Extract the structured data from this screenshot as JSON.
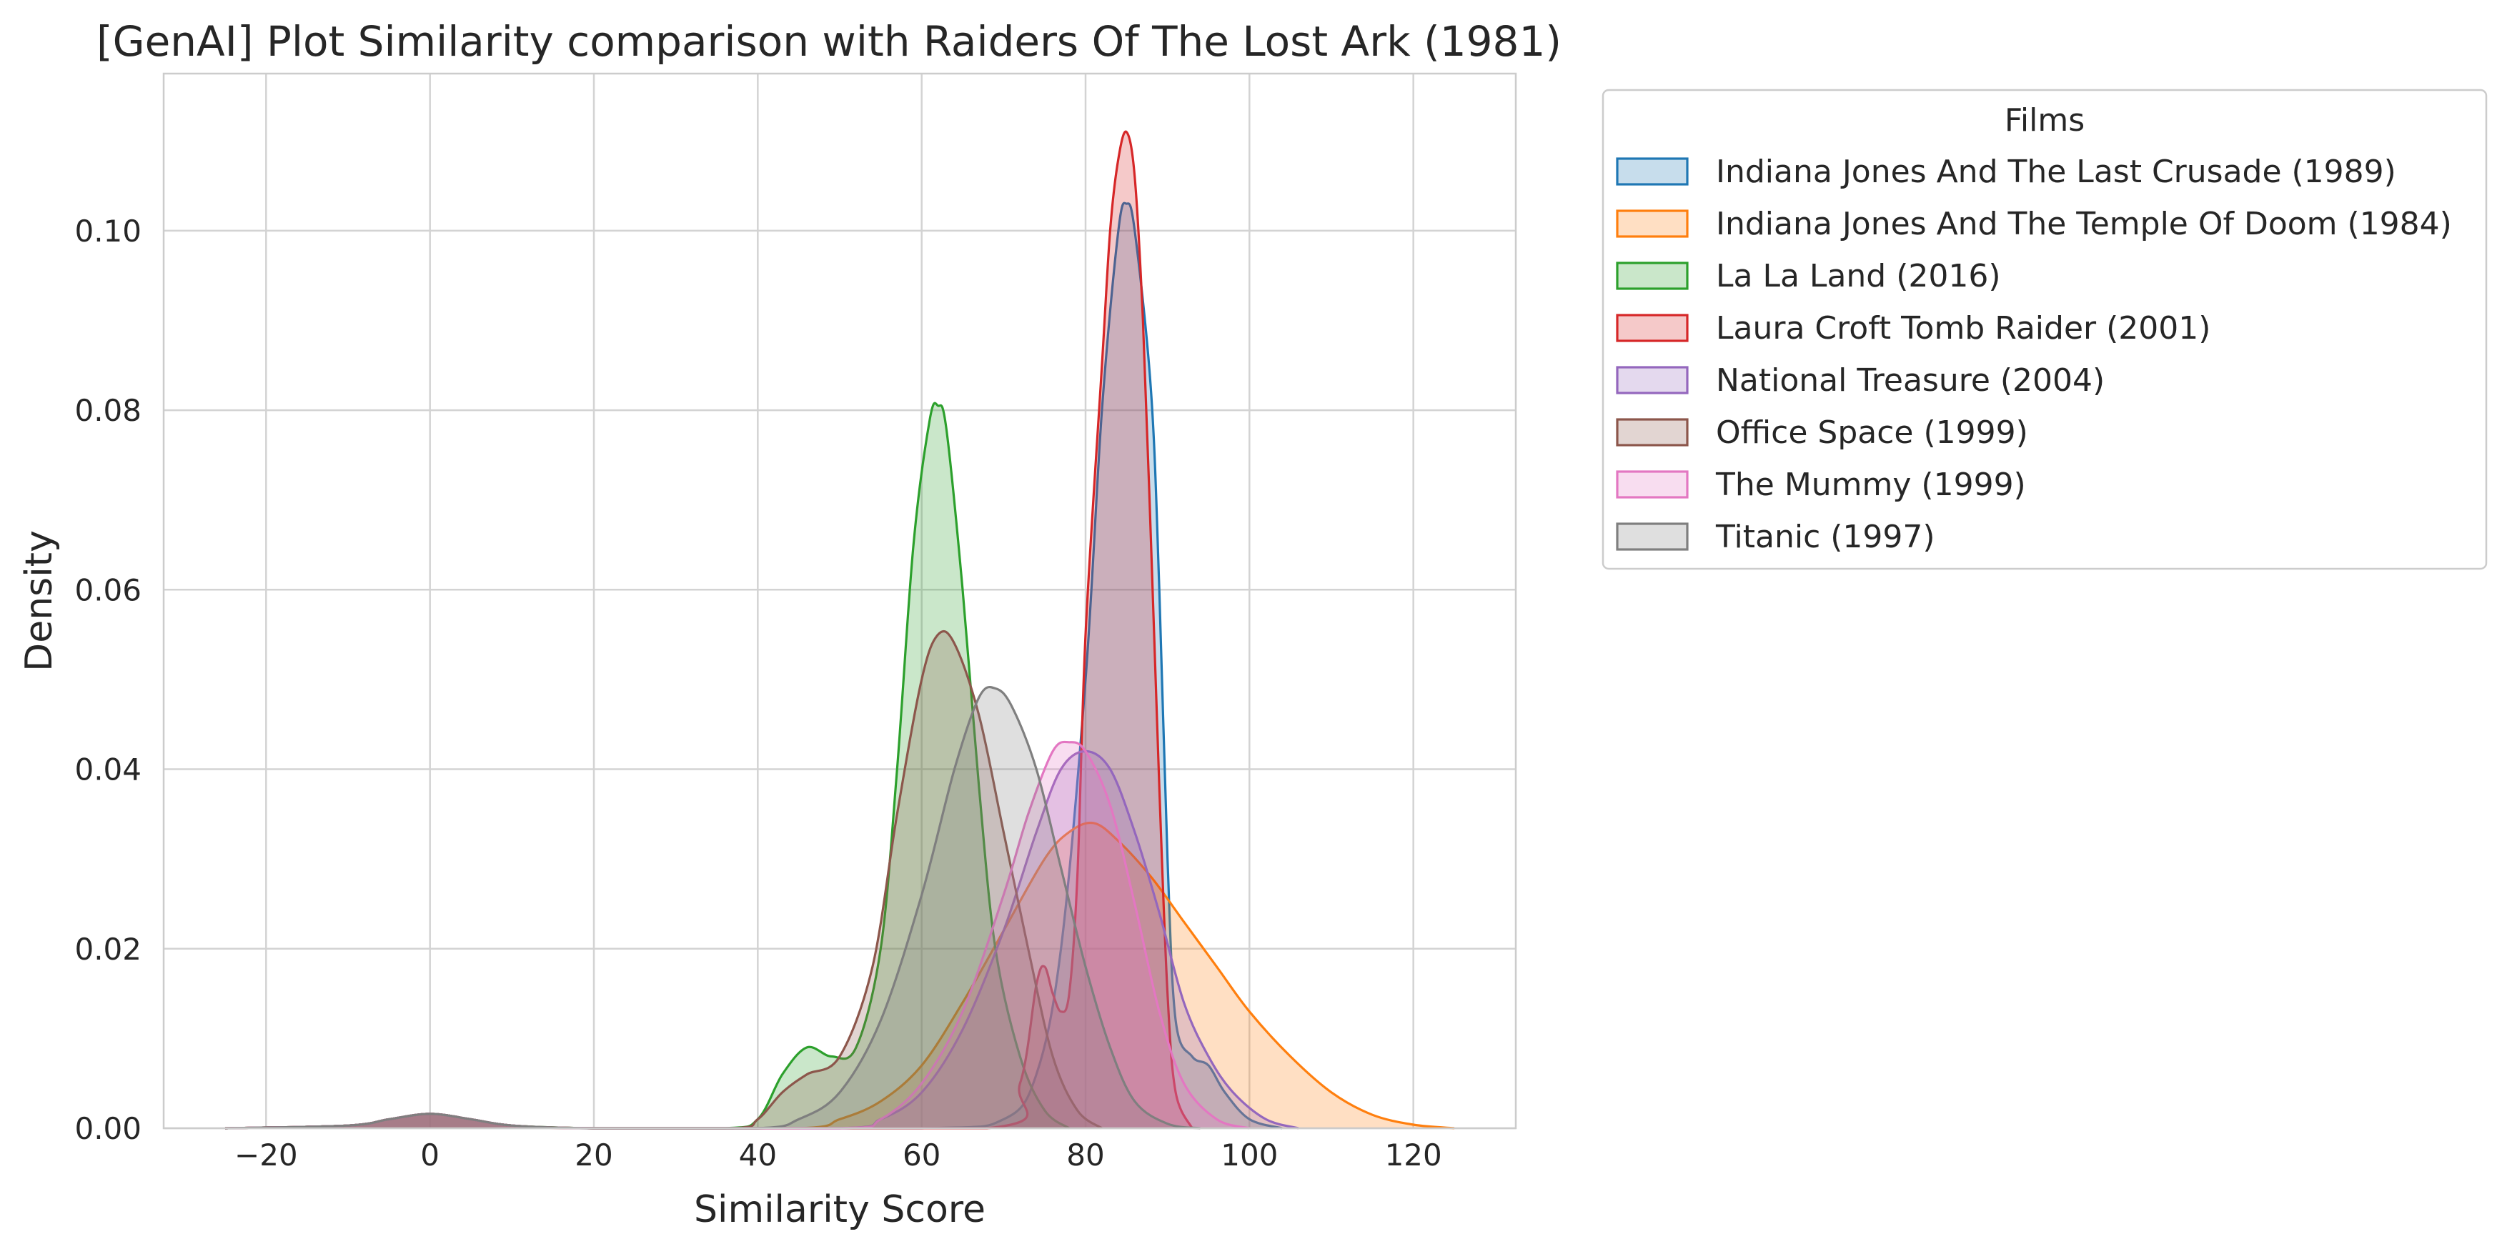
{
  "chart_data": {
    "type": "area",
    "title": "[GenAI] Plot Similarity comparison with Raiders Of The Lost Ark (1981)",
    "xlabel": "Similarity Score",
    "ylabel": "Density",
    "xlim": [
      -32.5,
      132.5
    ],
    "ylim": [
      0,
      0.1175
    ],
    "xticks": [
      -20,
      0,
      20,
      40,
      60,
      80,
      100,
      120
    ],
    "xtick_labels": [
      "−20",
      "0",
      "20",
      "40",
      "60",
      "80",
      "100",
      "120"
    ],
    "yticks": [
      0,
      0.02,
      0.04,
      0.06,
      0.08,
      0.1
    ],
    "ytick_labels": [
      "0.00",
      "0.02",
      "0.04",
      "0.06",
      "0.08",
      "0.10"
    ],
    "grid": true,
    "legend": {
      "title": "Films",
      "placement": "outside-upper-right"
    },
    "series": [
      {
        "name": "Indiana Jones And The Last Crusade (1989)",
        "color": "#1f77b4",
        "points": [
          [
            -25,
            0
          ],
          [
            -10,
            0.0003
          ],
          [
            -5,
            0.001
          ],
          [
            0,
            0.0016
          ],
          [
            5,
            0.001
          ],
          [
            10,
            0.0003
          ],
          [
            20,
            0
          ],
          [
            60,
            0
          ],
          [
            70,
            0.001
          ],
          [
            74,
            0.006
          ],
          [
            77,
            0.02
          ],
          [
            80,
            0.05
          ],
          [
            82,
            0.08
          ],
          [
            84,
            0.1
          ],
          [
            85,
            0.103
          ],
          [
            86,
            0.1
          ],
          [
            88,
            0.082
          ],
          [
            89,
            0.06
          ],
          [
            90,
            0.03
          ],
          [
            91,
            0.012
          ],
          [
            93,
            0.008
          ],
          [
            95,
            0.007
          ],
          [
            97,
            0.004
          ],
          [
            100,
            0.001
          ],
          [
            104,
            0
          ]
        ]
      },
      {
        "name": "Indiana Jones And The Temple Of Doom (1984)",
        "color": "#ff7f0e",
        "points": [
          [
            -25,
            0
          ],
          [
            -10,
            0.0003
          ],
          [
            -5,
            0.001
          ],
          [
            0,
            0.0016
          ],
          [
            5,
            0.001
          ],
          [
            10,
            0.0003
          ],
          [
            20,
            0
          ],
          [
            45,
            0
          ],
          [
            50,
            0.001
          ],
          [
            55,
            0.003
          ],
          [
            60,
            0.007
          ],
          [
            65,
            0.014
          ],
          [
            70,
            0.022
          ],
          [
            75,
            0.03
          ],
          [
            78,
            0.033
          ],
          [
            81,
            0.034
          ],
          [
            84,
            0.032
          ],
          [
            88,
            0.028
          ],
          [
            92,
            0.023
          ],
          [
            96,
            0.018
          ],
          [
            100,
            0.013
          ],
          [
            105,
            0.008
          ],
          [
            110,
            0.004
          ],
          [
            115,
            0.0015
          ],
          [
            120,
            0.0004
          ],
          [
            125,
            0
          ]
        ]
      },
      {
        "name": "La La Land (2016)",
        "color": "#2ca02c",
        "points": [
          [
            -25,
            0
          ],
          [
            -10,
            0.0003
          ],
          [
            -5,
            0.001
          ],
          [
            0,
            0.0016
          ],
          [
            5,
            0.001
          ],
          [
            10,
            0.0003
          ],
          [
            20,
            0
          ],
          [
            36,
            0
          ],
          [
            40,
            0.001
          ],
          [
            43,
            0.006
          ],
          [
            46,
            0.009
          ],
          [
            49,
            0.008
          ],
          [
            52,
            0.009
          ],
          [
            55,
            0.02
          ],
          [
            57,
            0.04
          ],
          [
            59,
            0.065
          ],
          [
            61,
            0.079
          ],
          [
            62,
            0.0805
          ],
          [
            63,
            0.078
          ],
          [
            65,
            0.06
          ],
          [
            67,
            0.038
          ],
          [
            69,
            0.02
          ],
          [
            72,
            0.008
          ],
          [
            75,
            0.002
          ],
          [
            78,
            0
          ]
        ]
      },
      {
        "name": "Laura Croft Tomb Raider (2001)",
        "color": "#d62728",
        "points": [
          [
            -25,
            0
          ],
          [
            -10,
            0.0003
          ],
          [
            -5,
            0.001
          ],
          [
            0,
            0.0016
          ],
          [
            5,
            0.001
          ],
          [
            10,
            0.0003
          ],
          [
            20,
            0
          ],
          [
            68,
            0
          ],
          [
            72,
            0.005
          ],
          [
            74,
            0.016
          ],
          [
            75,
            0.018
          ],
          [
            76,
            0.015
          ],
          [
            77,
            0.013
          ],
          [
            78,
            0.015
          ],
          [
            79,
            0.028
          ],
          [
            80,
            0.055
          ],
          [
            82,
            0.085
          ],
          [
            83,
            0.1
          ],
          [
            84,
            0.108
          ],
          [
            85,
            0.111
          ],
          [
            86,
            0.106
          ],
          [
            87,
            0.09
          ],
          [
            88,
            0.065
          ],
          [
            89,
            0.038
          ],
          [
            90,
            0.015
          ],
          [
            91,
            0.004
          ],
          [
            93,
            0
          ]
        ]
      },
      {
        "name": "National Treasure (2004)",
        "color": "#9467bd",
        "points": [
          [
            -25,
            0
          ],
          [
            -10,
            0.0003
          ],
          [
            -5,
            0.001
          ],
          [
            0,
            0.0016
          ],
          [
            5,
            0.001
          ],
          [
            10,
            0.0003
          ],
          [
            20,
            0
          ],
          [
            50,
            0
          ],
          [
            55,
            0.001
          ],
          [
            60,
            0.004
          ],
          [
            65,
            0.011
          ],
          [
            70,
            0.022
          ],
          [
            74,
            0.033
          ],
          [
            77,
            0.04
          ],
          [
            80,
            0.042
          ],
          [
            83,
            0.04
          ],
          [
            86,
            0.033
          ],
          [
            89,
            0.024
          ],
          [
            92,
            0.014
          ],
          [
            95,
            0.008
          ],
          [
            98,
            0.004
          ],
          [
            102,
            0.001
          ],
          [
            106,
            0
          ]
        ]
      },
      {
        "name": "Office Space (1999)",
        "color": "#8c564b",
        "points": [
          [
            -25,
            0
          ],
          [
            -10,
            0.0003
          ],
          [
            -5,
            0.001
          ],
          [
            0,
            0.0016
          ],
          [
            5,
            0.001
          ],
          [
            10,
            0.0003
          ],
          [
            20,
            0
          ],
          [
            37,
            0
          ],
          [
            40,
            0.001
          ],
          [
            43,
            0.004
          ],
          [
            46,
            0.006
          ],
          [
            50,
            0.008
          ],
          [
            54,
            0.018
          ],
          [
            57,
            0.035
          ],
          [
            60,
            0.05
          ],
          [
            62,
            0.055
          ],
          [
            64,
            0.054
          ],
          [
            67,
            0.046
          ],
          [
            70,
            0.033
          ],
          [
            73,
            0.02
          ],
          [
            76,
            0.008
          ],
          [
            79,
            0.002
          ],
          [
            82,
            0
          ]
        ]
      },
      {
        "name": "The Mummy (1999)",
        "color": "#e377c2",
        "points": [
          [
            -25,
            0
          ],
          [
            -10,
            0.0003
          ],
          [
            -5,
            0.001
          ],
          [
            0,
            0.0016
          ],
          [
            5,
            0.001
          ],
          [
            10,
            0.0003
          ],
          [
            20,
            0
          ],
          [
            50,
            0
          ],
          [
            55,
            0.001
          ],
          [
            60,
            0.005
          ],
          [
            65,
            0.013
          ],
          [
            70,
            0.026
          ],
          [
            73,
            0.035
          ],
          [
            76,
            0.042
          ],
          [
            78,
            0.043
          ],
          [
            80,
            0.042
          ],
          [
            83,
            0.036
          ],
          [
            86,
            0.025
          ],
          [
            89,
            0.013
          ],
          [
            92,
            0.005
          ],
          [
            96,
            0.001
          ],
          [
            100,
            0
          ]
        ]
      },
      {
        "name": "Titanic (1997)",
        "color": "#7f7f7f",
        "points": [
          [
            -25,
            0
          ],
          [
            -10,
            0.0003
          ],
          [
            -5,
            0.001
          ],
          [
            0,
            0.0016
          ],
          [
            5,
            0.001
          ],
          [
            10,
            0.0003
          ],
          [
            20,
            0
          ],
          [
            40,
            0
          ],
          [
            45,
            0.001
          ],
          [
            50,
            0.004
          ],
          [
            55,
            0.012
          ],
          [
            60,
            0.026
          ],
          [
            64,
            0.04
          ],
          [
            67,
            0.048
          ],
          [
            69,
            0.049
          ],
          [
            71,
            0.047
          ],
          [
            74,
            0.04
          ],
          [
            77,
            0.029
          ],
          [
            80,
            0.018
          ],
          [
            83,
            0.009
          ],
          [
            86,
            0.003
          ],
          [
            90,
            0.0005
          ],
          [
            94,
            0
          ]
        ]
      }
    ]
  }
}
